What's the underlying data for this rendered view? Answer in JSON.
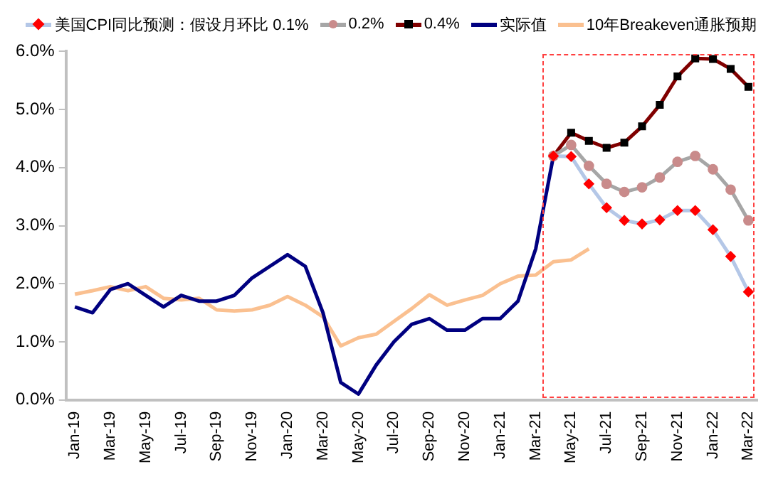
{
  "chart_data": {
    "type": "line",
    "categories": [
      "Jan-19",
      null,
      "Mar-19",
      null,
      "May-19",
      null,
      "Jul-19",
      null,
      "Sep-19",
      null,
      "Nov-19",
      null,
      "Jan-20",
      null,
      "Mar-20",
      null,
      "May-20",
      null,
      "Jul-20",
      null,
      "Sep-20",
      null,
      "Nov-20",
      null,
      "Jan-21",
      null,
      "Mar-21",
      null,
      "May-21",
      null,
      "Jul-21",
      null,
      "Sep-21",
      null,
      "Nov-21",
      null,
      "Jan-22",
      null,
      "Mar-22"
    ],
    "series": [
      {
        "name": "美国CPI同比预测：假设月环比 0.1%",
        "color": "#b4c7e7",
        "colors": [
          "#ff0000",
          "#ff0000",
          "#ff0000",
          "#ff0000",
          "#ff0000",
          "#ff0000",
          "#ff0000",
          "#ff0000",
          "#ff0000",
          "#ff0000",
          "#ff0000",
          "#ff0000",
          "#ff0000",
          "#ff0000",
          "#ff0000",
          "#ff0000",
          "#ff0000",
          "#ff0000",
          "#ff0000",
          "#ff0000",
          "#ff0000",
          "#ff0000",
          "#ff0000",
          "#ff0000",
          "#ff0000",
          "#ff0000",
          "#ff0000",
          "#ff0000",
          "#ff0000",
          "#ff0000",
          "#ff0000",
          "#ff0000",
          "#ff0000",
          "#ff0000",
          "#ff0000",
          "#ff0000",
          "#ff0000",
          "#ff0000",
          "#ff0000"
        ],
        "marker": "diamond",
        "values": [
          null,
          null,
          null,
          null,
          null,
          null,
          null,
          null,
          null,
          null,
          null,
          null,
          null,
          null,
          null,
          null,
          null,
          null,
          null,
          null,
          null,
          null,
          null,
          null,
          null,
          null,
          null,
          4.2,
          4.19,
          3.72,
          3.31,
          3.09,
          3.03,
          3.1,
          3.26,
          3.26,
          2.93,
          2.47,
          1.86
        ]
      },
      {
        "name": "0.2%",
        "color": "#a6a6a6",
        "colors": [
          "#c98b8b",
          "#c98b8b",
          "#c98b8b",
          "#c98b8b",
          "#c98b8b",
          "#c98b8b",
          "#c98b8b",
          "#c98b8b",
          "#c98b8b",
          "#c98b8b",
          "#c98b8b",
          "#c98b8b",
          "#c98b8b",
          "#c98b8b",
          "#c98b8b",
          "#c98b8b",
          "#c98b8b",
          "#c98b8b",
          "#c98b8b",
          "#c98b8b",
          "#c98b8b",
          "#c98b8b",
          "#c98b8b",
          "#c98b8b",
          "#c98b8b",
          "#c98b8b",
          "#c98b8b",
          "#c98b8b",
          "#c98b8b",
          "#c98b8b",
          "#c98b8b",
          "#c98b8b",
          "#c98b8b",
          "#c98b8b",
          "#c98b8b",
          "#c98b8b",
          "#c98b8b",
          "#c98b8b",
          "#c98b8b"
        ],
        "marker": "circle",
        "values": [
          null,
          null,
          null,
          null,
          null,
          null,
          null,
          null,
          null,
          null,
          null,
          null,
          null,
          null,
          null,
          null,
          null,
          null,
          null,
          null,
          null,
          null,
          null,
          null,
          null,
          null,
          null,
          4.2,
          4.39,
          4.03,
          3.72,
          3.58,
          3.66,
          3.83,
          4.1,
          4.2,
          3.97,
          3.62,
          3.09
        ]
      },
      {
        "name": "0.4%",
        "color": "#800000",
        "colors": [
          "#000000",
          "#000000",
          "#000000",
          "#000000",
          "#000000",
          "#000000",
          "#000000",
          "#000000",
          "#000000",
          "#000000",
          "#000000",
          "#000000",
          "#000000",
          "#000000",
          "#000000",
          "#000000",
          "#000000",
          "#000000",
          "#000000",
          "#000000",
          "#000000",
          "#000000",
          "#000000",
          "#000000",
          "#000000",
          "#000000",
          "#000000",
          "#000000",
          "#000000",
          "#000000",
          "#000000",
          "#000000",
          "#000000",
          "#000000",
          "#000000",
          "#000000",
          "#000000",
          "#000000",
          "#000000"
        ],
        "marker": "square",
        "values": [
          null,
          null,
          null,
          null,
          null,
          null,
          null,
          null,
          null,
          null,
          null,
          null,
          null,
          null,
          null,
          null,
          null,
          null,
          null,
          null,
          null,
          null,
          null,
          null,
          null,
          null,
          null,
          4.2,
          4.6,
          4.46,
          4.34,
          4.43,
          4.71,
          5.08,
          5.57,
          5.88,
          5.87,
          5.7,
          5.39
        ]
      },
      {
        "name": "实际值",
        "color": "#000080",
        "marker": "none",
        "values": [
          1.6,
          1.5,
          1.9,
          2.0,
          1.8,
          1.6,
          1.8,
          1.7,
          1.7,
          1.8,
          2.1,
          2.3,
          2.5,
          2.3,
          1.5,
          0.3,
          0.1,
          0.6,
          1.0,
          1.3,
          1.4,
          1.2,
          1.2,
          1.4,
          1.4,
          1.7,
          2.6,
          4.2,
          null,
          null,
          null,
          null,
          null,
          null,
          null,
          null,
          null,
          null,
          null
        ]
      },
      {
        "name": "10年Breakeven通胀预期",
        "color": "#fac090",
        "marker": "none",
        "values": [
          1.82,
          1.88,
          1.95,
          1.88,
          1.95,
          1.75,
          1.72,
          1.75,
          1.55,
          1.53,
          1.55,
          1.63,
          1.78,
          1.63,
          1.43,
          0.93,
          1.07,
          1.13,
          1.35,
          1.57,
          1.81,
          1.63,
          1.72,
          1.8,
          2.0,
          2.13,
          2.15,
          2.38,
          2.41,
          2.6,
          null,
          null,
          null,
          null,
          null,
          null,
          null,
          null,
          null
        ]
      }
    ],
    "ylim": [
      0,
      6
    ],
    "yticks": [
      {
        "value": 0,
        "label": "0.0%"
      },
      {
        "value": 1,
        "label": "1.0%"
      },
      {
        "value": 2,
        "label": "2.0%"
      },
      {
        "value": 3,
        "label": "3.0%"
      },
      {
        "value": 4,
        "label": "4.0%"
      },
      {
        "value": 5,
        "label": "5.0%"
      },
      {
        "value": 6,
        "label": "6.0%"
      }
    ],
    "grid": false,
    "legend": "top"
  }
}
